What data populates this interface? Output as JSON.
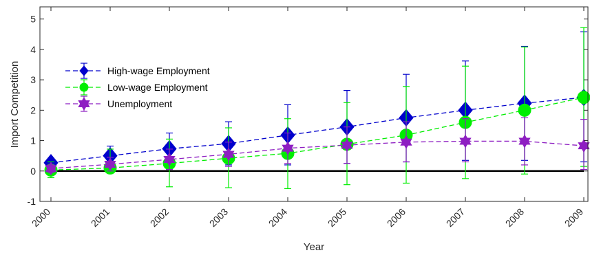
{
  "chart_data": {
    "type": "line",
    "title": "",
    "xlabel": "Year",
    "ylabel": "Import Competition",
    "x": [
      "2000",
      "2001",
      "2002",
      "2003",
      "2004",
      "2005",
      "2006",
      "2007",
      "2008",
      "2009"
    ],
    "ylim": [
      -1,
      5.4
    ],
    "yticks": [
      "-1",
      "0",
      "1",
      "2",
      "3",
      "4",
      "5"
    ],
    "grid": false,
    "legend_position": "upper-left",
    "reference_line": {
      "y": 0,
      "color": "#000000"
    },
    "series": [
      {
        "name": "High-wage Employment",
        "color": "#0000cc",
        "marker": "diamond",
        "values": [
          0.27,
          0.5,
          0.73,
          0.9,
          1.18,
          1.45,
          1.75,
          2.0,
          2.23,
          2.42
        ],
        "error_low": [
          0.15,
          0.2,
          0.25,
          0.2,
          0.2,
          0.25,
          0.3,
          0.35,
          0.35,
          0.3
        ],
        "error_high": [
          0.4,
          0.82,
          1.25,
          1.62,
          2.18,
          2.65,
          3.18,
          3.62,
          4.1,
          4.58
        ]
      },
      {
        "name": "Low-wage Employment",
        "color": "#00ee00",
        "marker": "circle",
        "values": [
          0.03,
          0.1,
          0.25,
          0.42,
          0.58,
          0.88,
          1.18,
          1.6,
          2.0,
          2.42
        ],
        "error_low": [
          -0.22,
          -0.05,
          -0.52,
          -0.55,
          -0.58,
          -0.45,
          -0.4,
          -0.25,
          -0.1,
          0.15
        ],
        "error_high": [
          0.3,
          0.72,
          1.05,
          1.42,
          1.72,
          2.25,
          2.78,
          3.45,
          4.08,
          4.72
        ]
      },
      {
        "name": "Unemployment",
        "color": "#8e1fc2",
        "marker": "hexagram",
        "values": [
          0.08,
          0.22,
          0.38,
          0.55,
          0.75,
          0.85,
          0.95,
          0.98,
          0.98,
          0.83
        ],
        "error_low": [
          -0.05,
          0.0,
          0.05,
          0.15,
          0.25,
          0.25,
          0.3,
          0.3,
          0.2,
          0.05
        ],
        "error_high": [
          0.2,
          0.45,
          0.72,
          0.95,
          1.25,
          1.45,
          1.62,
          1.72,
          1.75,
          1.7
        ]
      }
    ]
  }
}
